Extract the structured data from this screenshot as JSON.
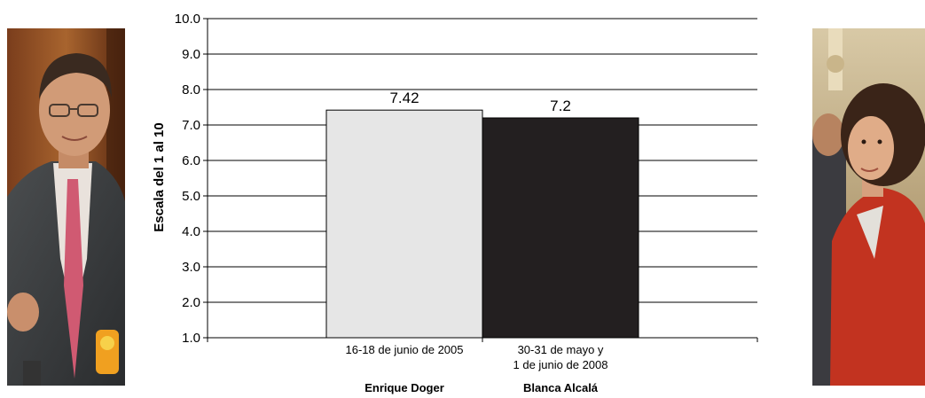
{
  "chart_data": {
    "type": "bar",
    "categories": [
      {
        "date_line1": "16-18 de junio de 2005",
        "date_line2": "",
        "name": "Enrique Doger"
      },
      {
        "date_line1": "30-31 de mayo y",
        "date_line2": "1 de junio de 2008",
        "name": "Blanca Alcalá"
      }
    ],
    "values": [
      7.42,
      7.2
    ],
    "value_labels": [
      "7.42",
      "7.2"
    ],
    "bar_colors": [
      "#e6e6e6",
      "#231f20"
    ],
    "ylabel": "Escala del 1 al 10",
    "xlabel": "",
    "title": "",
    "ylim": [
      1.0,
      10.0
    ],
    "yticks": [
      1.0,
      2.0,
      3.0,
      4.0,
      5.0,
      6.0,
      7.0,
      8.0,
      9.0,
      10.0
    ],
    "ytick_labels": [
      "1.0",
      "2.0",
      "3.0",
      "4.0",
      "5.0",
      "6.0",
      "7.0",
      "8.0",
      "9.0",
      "10.0"
    ],
    "grid": true,
    "legend": "none"
  },
  "photos": {
    "left": "photo-man-in-suit",
    "right": "photo-woman-in-red"
  }
}
